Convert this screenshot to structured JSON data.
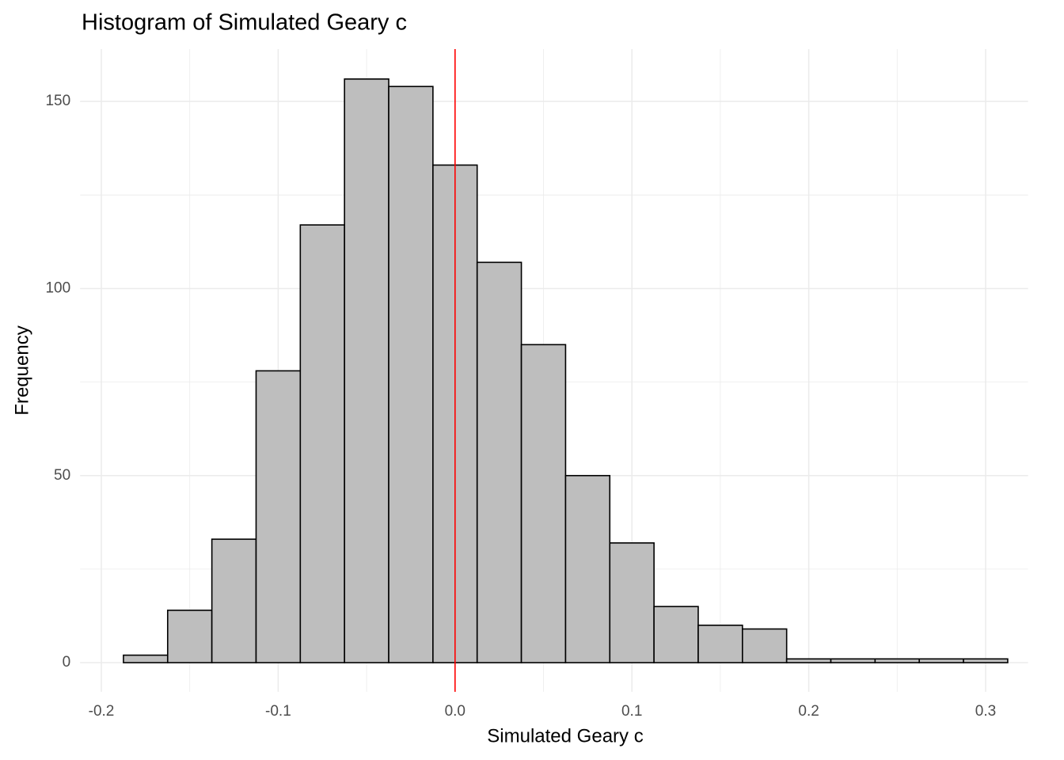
{
  "chart_data": {
    "type": "histogram",
    "title": "Histogram of Simulated Geary c",
    "x_label": "Simulated Geary c",
    "y_label": "Frequency",
    "bins": [
      -0.1875,
      -0.1625,
      -0.1375,
      -0.1125,
      -0.0875,
      -0.0625,
      -0.0375,
      -0.0125,
      0.0125,
      0.0375,
      0.0625,
      0.0875,
      0.1125,
      0.1375,
      0.1625,
      0.1875,
      0.2125,
      0.2375,
      0.2625,
      0.2875,
      0.3125
    ],
    "counts": [
      2,
      14,
      33,
      78,
      117,
      156,
      154,
      133,
      107,
      85,
      50,
      32,
      15,
      10,
      9,
      1,
      1,
      1,
      1,
      1
    ],
    "color": "#bebebe",
    "edge_color": "#000000",
    "xlim": [
      -0.212,
      0.324
    ],
    "ylim": [
      -7.8,
      164
    ],
    "xticks": [
      -0.2,
      -0.1,
      {
        "value": 0,
        "label": "0.0"
      },
      0.1,
      0.2,
      0.3
    ],
    "yticks": [
      0,
      50,
      100,
      150
    ],
    "xminor": [
      -0.15,
      -0.05,
      0.05,
      0.15,
      0.25
    ],
    "yminor": [
      25,
      75,
      125
    ],
    "grid": true,
    "vline": 0,
    "vline_color": "#ff0000"
  }
}
